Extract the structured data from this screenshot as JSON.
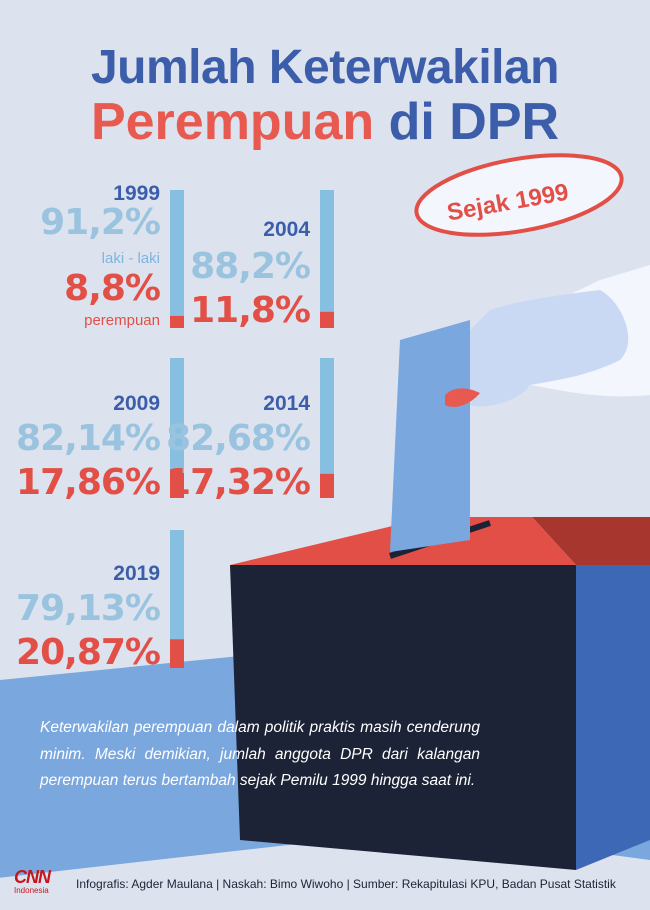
{
  "title": {
    "line1": "Jumlah Keterwakilan",
    "line2_a": "Perempuan",
    "line2_b": "di DPR"
  },
  "badge": "Sejak 1999",
  "legend": {
    "laki": "laki - laki",
    "perempuan": "perempuan"
  },
  "colors": {
    "laki": "#86bfe0",
    "perempuan": "#e24f47",
    "title_blue": "#3b5daa",
    "title_red": "#e85a4f",
    "background": "#dde3ee"
  },
  "chart_data": {
    "type": "bar",
    "categories": [
      "1999",
      "2004",
      "2009",
      "2014",
      "2019"
    ],
    "series": [
      {
        "name": "laki - laki",
        "values": [
          91.2,
          88.2,
          82.14,
          82.68,
          79.13
        ],
        "labels": [
          "91,2%",
          "88,2%",
          "82,14%",
          "82,68%",
          "79,13%"
        ]
      },
      {
        "name": "perempuan",
        "values": [
          8.8,
          11.8,
          17.86,
          17.32,
          20.87
        ],
        "labels": [
          "8,8%",
          "11,8%",
          "17,86%",
          "17,32%",
          "20,87%"
        ]
      }
    ],
    "stacked": true,
    "ylim": [
      0,
      100
    ]
  },
  "description": "Keterwakilan perempuan dalam politik praktis masih cenderung minim. Meski demikian, jumlah anggota DPR dari kalangan perempuan terus bertambah sejak Pemilu 1999 hingga saat ini.",
  "credit": "Infografis: Agder Maulana | Naskah: Bimo Wiwoho | Sumber: Rekapitulasi KPU, Badan Pusat Statistik",
  "logo": {
    "main": "CNN",
    "sub": "Indonesia"
  }
}
